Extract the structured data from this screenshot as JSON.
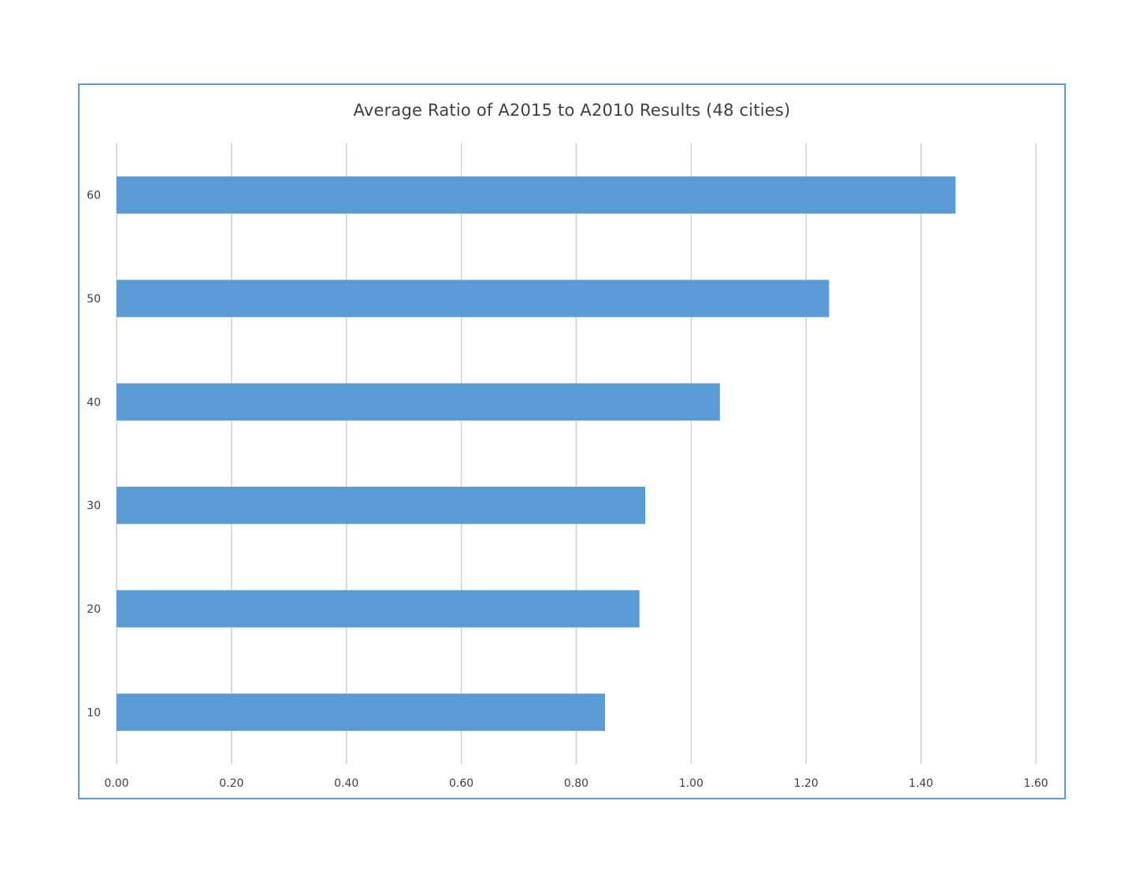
{
  "chart_data": {
    "type": "bar",
    "orientation": "horizontal",
    "title": "Average Ratio of A2015 to A2010 Results (48 cities)",
    "xlabel": "",
    "ylabel": "",
    "categories": [
      "10",
      "20",
      "30",
      "40",
      "50",
      "60"
    ],
    "values": [
      0.85,
      0.91,
      0.92,
      1.05,
      1.24,
      1.46
    ],
    "xlim": [
      0.0,
      1.6
    ],
    "x_ticks": [
      "0.00",
      "0.20",
      "0.40",
      "0.60",
      "0.80",
      "1.00",
      "1.20",
      "1.40",
      "1.60"
    ],
    "grid": "vertical",
    "legend": "none",
    "colors": {
      "bar": "#5b9bd5",
      "gridline": "#d0d0d0",
      "frame": "#5b9bd5",
      "text": "#404040"
    }
  }
}
